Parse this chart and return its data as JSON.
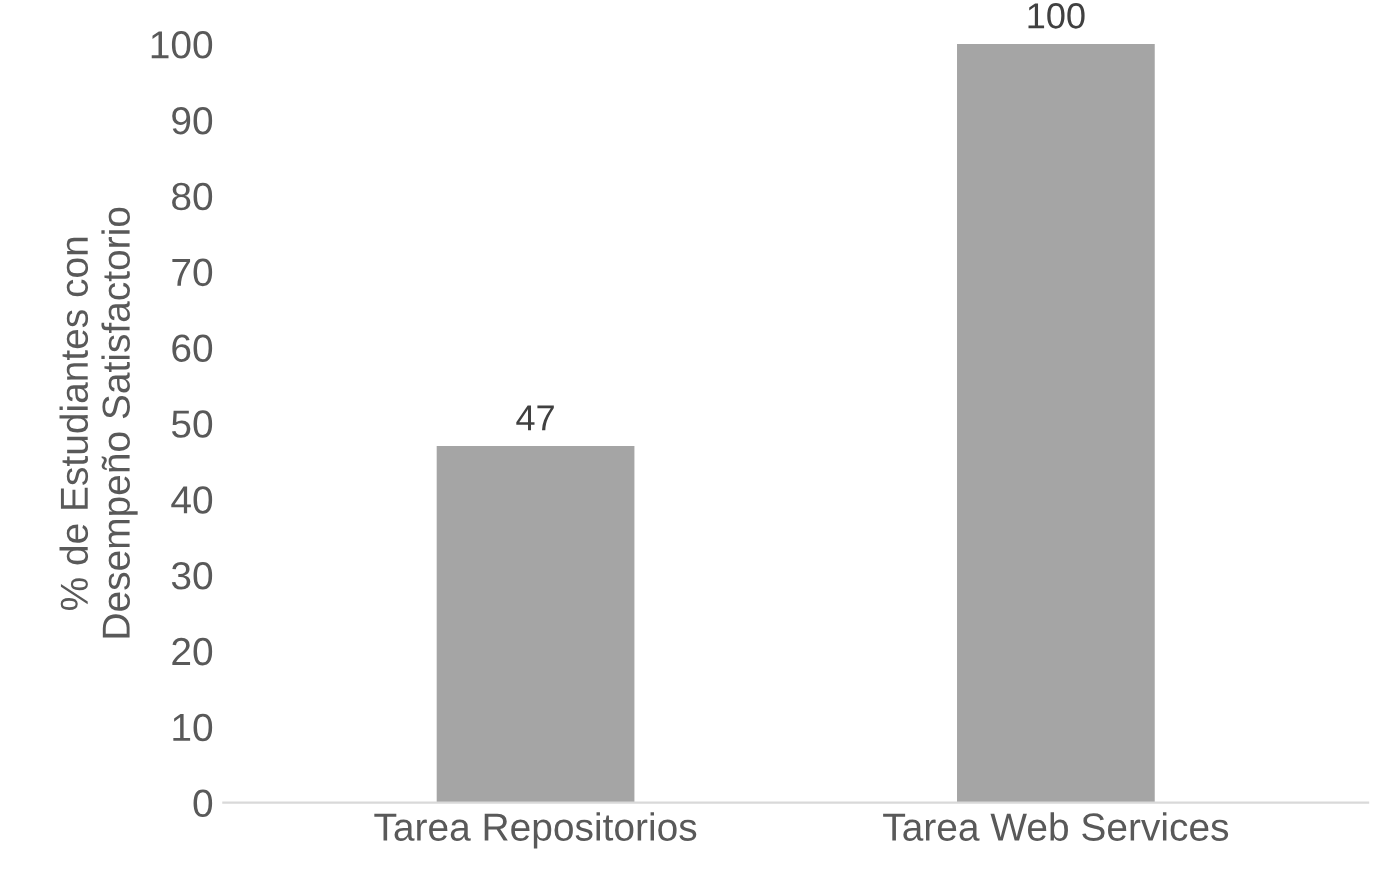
{
  "chart_data": {
    "type": "bar",
    "ylabel": "% de Estudiantes con\nDesempeño Satisfactorio",
    "categories": [
      "Tarea Repositorios",
      "Tarea Web Services"
    ],
    "values": [
      47,
      100
    ],
    "color": "#a5a5a5",
    "ylim": [
      0,
      100
    ],
    "yticks": [
      0,
      10,
      20,
      30,
      40,
      50,
      60,
      70,
      80,
      90,
      100
    ],
    "data_labels": true,
    "grid": false,
    "legend": false
  }
}
